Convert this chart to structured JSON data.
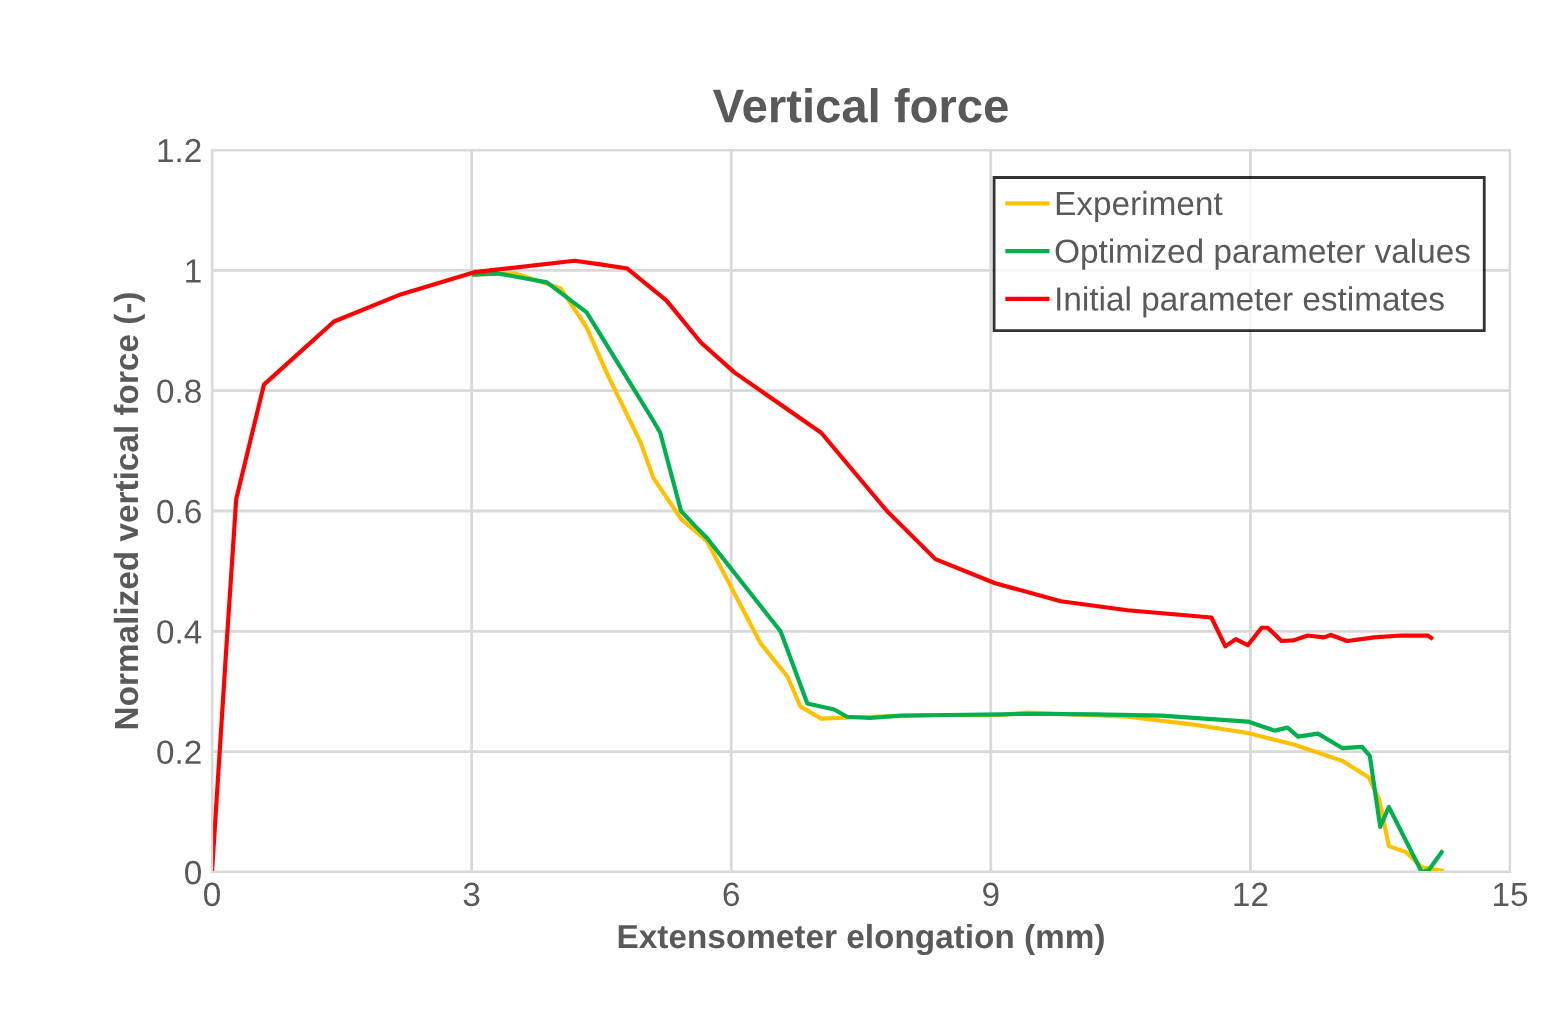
{
  "chart_data": {
    "type": "line",
    "title": "Vertical force",
    "xlabel": "Extensometer elongation (mm)",
    "ylabel": "Normalized vertical force (-)",
    "xlim": [
      0,
      15
    ],
    "xticks": [
      0,
      3,
      6,
      9,
      12,
      15
    ],
    "ylim": [
      0,
      1.2
    ],
    "yticks": [
      0,
      0.2,
      0.4,
      0.6,
      0.8,
      1,
      1.2
    ],
    "grid": true,
    "legend": "top right",
    "marker": "none",
    "line_style": "solid",
    "series": [
      {
        "name": "Experiment",
        "color": "#ffc000",
        "x": [
          3.03,
          3.5,
          4.03,
          4.33,
          4.56,
          4.95,
          5.1,
          5.42,
          5.72,
          6.34,
          6.65,
          6.8,
          7.04,
          7.6,
          8.35,
          9.12,
          9.43,
          10.58,
          11.35,
          11.97,
          12.5,
          13.06,
          13.37,
          13.49,
          13.6,
          13.8,
          13.98,
          14.21
        ],
        "values": [
          0.993,
          0.995,
          0.97,
          0.905,
          0.83,
          0.715,
          0.655,
          0.587,
          0.55,
          0.38,
          0.325,
          0.275,
          0.255,
          0.258,
          0.261,
          0.261,
          0.265,
          0.258,
          0.245,
          0.231,
          0.212,
          0.185,
          0.157,
          0.12,
          0.043,
          0.033,
          0.008,
          0.002
        ]
      },
      {
        "name": "Optimized parameter values",
        "color": "#00b050",
        "x": [
          3.03,
          3.3,
          3.87,
          4.33,
          4.95,
          5.1,
          5.18,
          5.42,
          5.57,
          5.72,
          6.57,
          6.88,
          7.19,
          7.34,
          7.6,
          7.96,
          8.5,
          9.12,
          9.43,
          10.2,
          10.97,
          11.97,
          12.28,
          12.43,
          12.55,
          12.78,
          13.06,
          13.29,
          13.38,
          13.5,
          13.6,
          13.98,
          14.06,
          14.21
        ],
        "values": [
          0.993,
          0.995,
          0.98,
          0.93,
          0.785,
          0.75,
          0.73,
          0.6,
          0.577,
          0.555,
          0.4,
          0.28,
          0.27,
          0.258,
          0.256,
          0.26,
          0.261,
          0.262,
          0.263,
          0.262,
          0.26,
          0.25,
          0.235,
          0.24,
          0.225,
          0.23,
          0.206,
          0.208,
          0.193,
          0.075,
          0.108,
          0.0,
          0.003,
          0.033
        ]
      },
      {
        "name": "Initial parameter estimates",
        "color": "#ff0000",
        "x": [
          0,
          0.16,
          0.28,
          0.6,
          1.41,
          2.18,
          3.03,
          4.19,
          4.49,
          4.8,
          5.25,
          5.65,
          6.04,
          7.04,
          7.8,
          8.36,
          9.05,
          9.81,
          10.58,
          11.55,
          11.71,
          11.83,
          11.97,
          12.13,
          12.2,
          12.36,
          12.5,
          12.66,
          12.85,
          12.93,
          13.12,
          13.43,
          13.74,
          14.05,
          14.09
        ],
        "values": [
          0,
          0.36,
          0.62,
          0.81,
          0.915,
          0.96,
          0.997,
          1.016,
          1.01,
          1.003,
          0.95,
          0.88,
          0.83,
          0.73,
          0.6,
          0.52,
          0.48,
          0.45,
          0.435,
          0.423,
          0.375,
          0.387,
          0.377,
          0.406,
          0.406,
          0.384,
          0.385,
          0.393,
          0.39,
          0.394,
          0.384,
          0.39,
          0.393,
          0.393,
          0.389
        ]
      }
    ]
  }
}
